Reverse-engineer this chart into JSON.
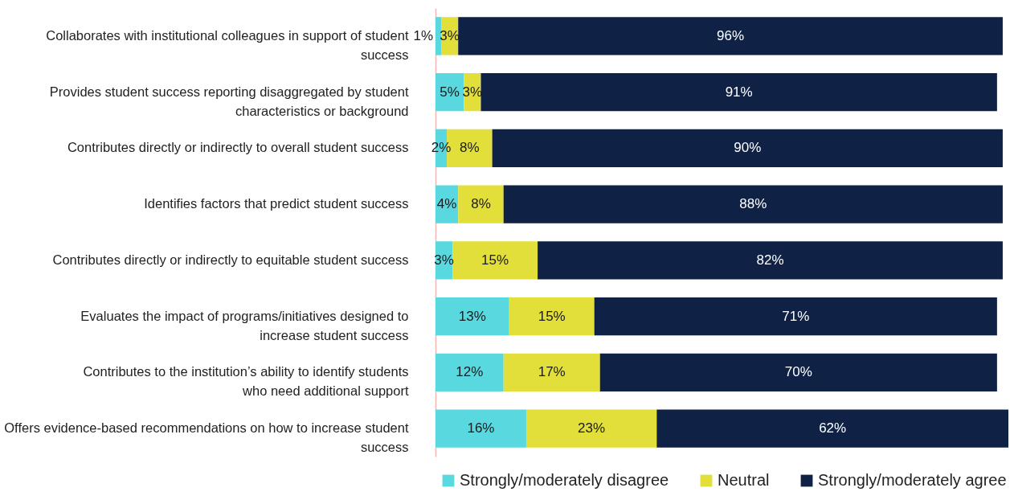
{
  "chart_data": {
    "type": "bar",
    "orientation": "horizontal",
    "stacked": true,
    "data_labels": true,
    "grid": false,
    "legend": "bottom",
    "categories": [
      "Collaborates with institutional colleagues in support of student success",
      "Provides student success reporting disaggregated by student characteristics or background",
      "Contributes directly or indirectly to overall student success",
      "Identifies factors that predict student success",
      "Contributes directly or indirectly to equitable student success",
      "Evaluates the impact of programs/initiatives designed to increase student success",
      "Contributes to the institution’s ability to identify students who need additional support",
      "Offers evidence-based recommendations on how to increase student success"
    ],
    "series": [
      {
        "name": "Strongly/moderately disagree",
        "color": "#5ad8e0",
        "values": [
          1,
          5,
          2,
          4,
          3,
          13,
          12,
          16
        ],
        "value_labels": [
          "1%",
          "5%",
          "2%",
          "4%",
          "3%",
          "13%",
          "12%",
          "16%"
        ]
      },
      {
        "name": "Neutral",
        "color": "#e3df3a",
        "values": [
          3,
          3,
          8,
          8,
          15,
          15,
          17,
          23
        ],
        "value_labels": [
          "3%",
          "3%",
          "8%",
          "8%",
          "15%",
          "15%",
          "17%",
          "23%"
        ]
      },
      {
        "name": "Strongly/moderately agree",
        "color": "#0f2145",
        "values": [
          96,
          91,
          90,
          88,
          82,
          71,
          70,
          62
        ],
        "value_labels": [
          "96%",
          "91%",
          "90%",
          "88%",
          "82%",
          "71%",
          "70%",
          "62%"
        ]
      }
    ]
  }
}
